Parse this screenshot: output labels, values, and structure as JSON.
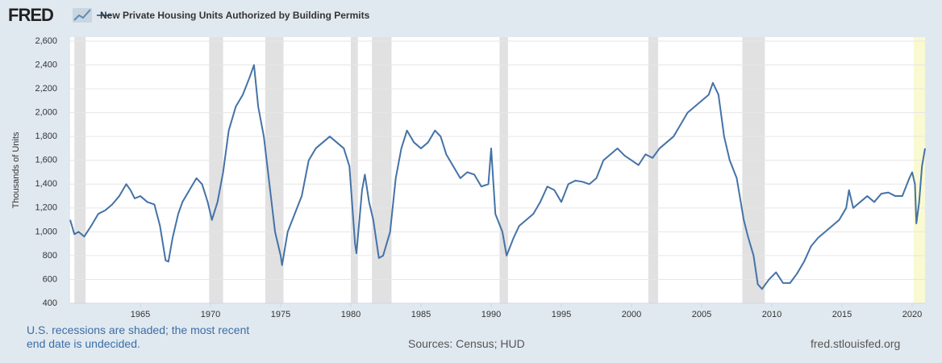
{
  "logo": "FRED",
  "note": "U.S. recessions are shaded; the most recent end date is undecided.",
  "source": "Sources: Census; HUD",
  "website": "fred.stlouisfed.org",
  "chart_data": {
    "type": "line",
    "ylabel": "Thousands of Units",
    "xlim": [
      1960,
      2020.92
    ],
    "xticks": [
      1965,
      1970,
      1975,
      1980,
      1985,
      1990,
      1995,
      2000,
      2005,
      2010,
      2015,
      2020
    ],
    "ylim": [
      400,
      2600
    ],
    "yticks": [
      400,
      600,
      800,
      {
        "value": 1000,
        "label": "1,000"
      },
      {
        "value": 1200,
        "label": "1,200"
      },
      {
        "value": 1400,
        "label": "1,400"
      },
      {
        "value": 1600,
        "label": "1,600"
      },
      {
        "value": 1800,
        "label": "1,800"
      },
      {
        "value": 2000,
        "label": "2,000"
      },
      {
        "value": 2200,
        "label": "2,200"
      },
      {
        "value": 2400,
        "label": "2,400"
      },
      {
        "value": 2600,
        "label": "2,600"
      }
    ],
    "grid": true,
    "recession_color": "#e1e1e1",
    "undecided_color": "#fafad2",
    "recessions": [
      {
        "start": 1960.3,
        "end": 1961.1
      },
      {
        "start": 1969.9,
        "end": 1970.9
      },
      {
        "start": 1973.9,
        "end": 1975.2
      },
      {
        "start": 1980.0,
        "end": 1980.5
      },
      {
        "start": 1981.5,
        "end": 1982.9
      },
      {
        "start": 1990.6,
        "end": 1991.2
      },
      {
        "start": 2001.2,
        "end": 2001.9
      },
      {
        "start": 2007.9,
        "end": 2009.5
      },
      {
        "start": 2020.1,
        "end": null
      }
    ],
    "x": [
      1960,
      1960.3,
      1960.6,
      1961,
      1961.5,
      1962,
      1962.5,
      1963,
      1963.5,
      1964,
      1964.3,
      1964.6,
      1965,
      1965.5,
      1966,
      1966.4,
      1966.8,
      1967,
      1967.3,
      1967.7,
      1968,
      1968.5,
      1969,
      1969.4,
      1969.8,
      1970.1,
      1970.5,
      1970.9,
      1971.3,
      1971.8,
      1972.3,
      1972.8,
      1973.1,
      1973.4,
      1973.8,
      1974.2,
      1974.6,
      1975.0,
      1975.1,
      1975.5,
      1976,
      1976.5,
      1977,
      1977.5,
      1978,
      1978.5,
      1979,
      1979.5,
      1979.9,
      1980.3,
      1980.4,
      1980.8,
      1981.0,
      1981.3,
      1981.6,
      1982.0,
      1982.3,
      1982.8,
      1983.2,
      1983.6,
      1984,
      1984.5,
      1985,
      1985.5,
      1986,
      1986.4,
      1986.8,
      1987.3,
      1987.8,
      1988.3,
      1988.8,
      1989.3,
      1989.8,
      1990.0,
      1990.3,
      1990.8,
      1991.1,
      1991.6,
      1992,
      1992.5,
      1993,
      1993.5,
      1994,
      1994.5,
      1995,
      1995.5,
      1996,
      1996.5,
      1997,
      1997.5,
      1998,
      1998.5,
      1999,
      1999.5,
      2000,
      2000.5,
      2001,
      2001.5,
      2002,
      2002.5,
      2003,
      2003.5,
      2004,
      2004.5,
      2005,
      2005.5,
      2005.8,
      2006.2,
      2006.6,
      2007,
      2007.5,
      2008,
      2008.3,
      2008.7,
      2009.0,
      2009.3,
      2009.8,
      2010.3,
      2010.8,
      2011.3,
      2011.8,
      2012.3,
      2012.8,
      2013.3,
      2013.8,
      2014.3,
      2014.8,
      2015.3,
      2015.5,
      2015.8,
      2016.3,
      2016.8,
      2017.3,
      2017.8,
      2018.3,
      2018.8,
      2019.3,
      2019.8,
      2020.0,
      2020.2,
      2020.3,
      2020.5,
      2020.7,
      2020.92
    ],
    "series": [
      {
        "name": "New Private Housing Units Authorized by Building Permits",
        "color": "#4572a7",
        "values": [
          1100,
          980,
          1000,
          960,
          1050,
          1150,
          1180,
          1230,
          1300,
          1400,
          1350,
          1280,
          1300,
          1250,
          1230,
          1050,
          760,
          750,
          950,
          1150,
          1250,
          1350,
          1450,
          1400,
          1250,
          1100,
          1250,
          1500,
          1850,
          2050,
          2150,
          2300,
          2400,
          2050,
          1800,
          1400,
          1000,
          800,
          720,
          1000,
          1150,
          1300,
          1600,
          1700,
          1750,
          1800,
          1750,
          1700,
          1550,
          900,
          820,
          1350,
          1480,
          1250,
          1100,
          780,
          800,
          1000,
          1450,
          1700,
          1850,
          1750,
          1700,
          1750,
          1850,
          1800,
          1650,
          1550,
          1450,
          1500,
          1480,
          1380,
          1400,
          1700,
          1150,
          1000,
          800,
          950,
          1050,
          1100,
          1150,
          1250,
          1380,
          1350,
          1250,
          1400,
          1430,
          1420,
          1400,
          1450,
          1600,
          1650,
          1700,
          1640,
          1600,
          1560,
          1650,
          1620,
          1700,
          1750,
          1800,
          1900,
          2000,
          2050,
          2100,
          2150,
          2250,
          2150,
          1800,
          1600,
          1450,
          1100,
          960,
          800,
          560,
          520,
          600,
          660,
          570,
          570,
          650,
          750,
          880,
          950,
          1000,
          1050,
          1100,
          1200,
          1350,
          1200,
          1250,
          1300,
          1250,
          1320,
          1330,
          1300,
          1300,
          1450,
          1500,
          1400,
          1070,
          1250,
          1550,
          1700
        ]
      }
    ]
  }
}
